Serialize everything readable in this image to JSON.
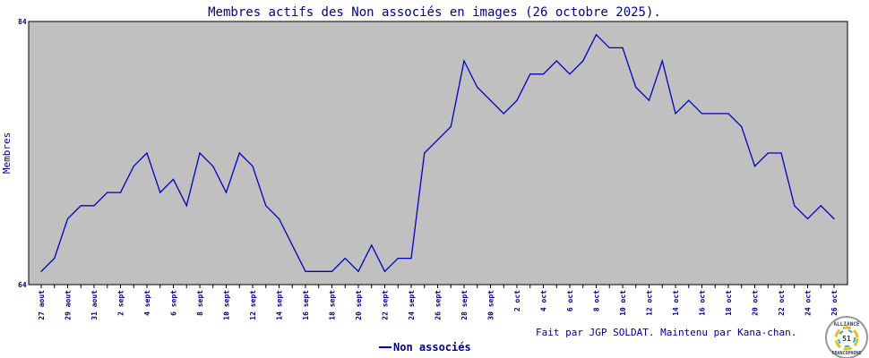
{
  "chart_data": {
    "type": "line",
    "title": "Membres actifs des Non associés en images (26 octobre 2025).",
    "xlabel": "",
    "ylabel": "Membres",
    "ylim": [
      64,
      84
    ],
    "y_tick_labels": [
      "84",
      "64"
    ],
    "grid": false,
    "legend_position": "bottom",
    "x": [
      "27 aout",
      "28 aout",
      "29 aout",
      "30 aout",
      "31 aout",
      "1 sept",
      "2 sept",
      "3 sept",
      "4 sept",
      "5 sept",
      "6 sept",
      "7 sept",
      "8 sept",
      "9 sept",
      "10 sept",
      "11 sept",
      "12 sept",
      "13 sept",
      "14 sept",
      "15 sept",
      "16 sept",
      "17 sept",
      "18 sept",
      "19 sept",
      "20 sept",
      "21 sept",
      "22 sept",
      "23 sept",
      "24 sept",
      "25 sept",
      "26 sept",
      "27 sept",
      "28 sept",
      "29 sept",
      "30 sept",
      "1 oct",
      "2 oct",
      "3 oct",
      "4 oct",
      "5 oct",
      "6 oct",
      "7 oct",
      "8 oct",
      "9 oct",
      "10 oct",
      "11 oct",
      "12 oct",
      "13 oct",
      "14 oct",
      "15 oct",
      "16 oct",
      "17 oct",
      "18 oct",
      "19 oct",
      "20 oct",
      "21 oct",
      "22 oct",
      "23 oct",
      "24 oct",
      "25 oct",
      "26 oct"
    ],
    "series": [
      {
        "name": "Non associés",
        "color": "#0000c0",
        "values": [
          65,
          66,
          69,
          70,
          70,
          71,
          71,
          73,
          74,
          71,
          72,
          70,
          74,
          73,
          71,
          74,
          73,
          70,
          69,
          67,
          65,
          65,
          65,
          66,
          65,
          67,
          65,
          66,
          66,
          74,
          75,
          76,
          81,
          79,
          78,
          77,
          78,
          80,
          80,
          81,
          80,
          81,
          83,
          82,
          82,
          79,
          78,
          81,
          77,
          78,
          77,
          77,
          77,
          76,
          73,
          74,
          74,
          70,
          69,
          70,
          69
        ]
      }
    ],
    "plot_background": "#c0c0c0",
    "text_color": "#000080"
  },
  "footer": {
    "credit": "Fait par JGP SOLDAT. Maintenu par Kana-chan."
  },
  "logo": {
    "top_text": "ALLIANCE",
    "bottom_text": "FRANCOPHONE",
    "number": "51"
  }
}
